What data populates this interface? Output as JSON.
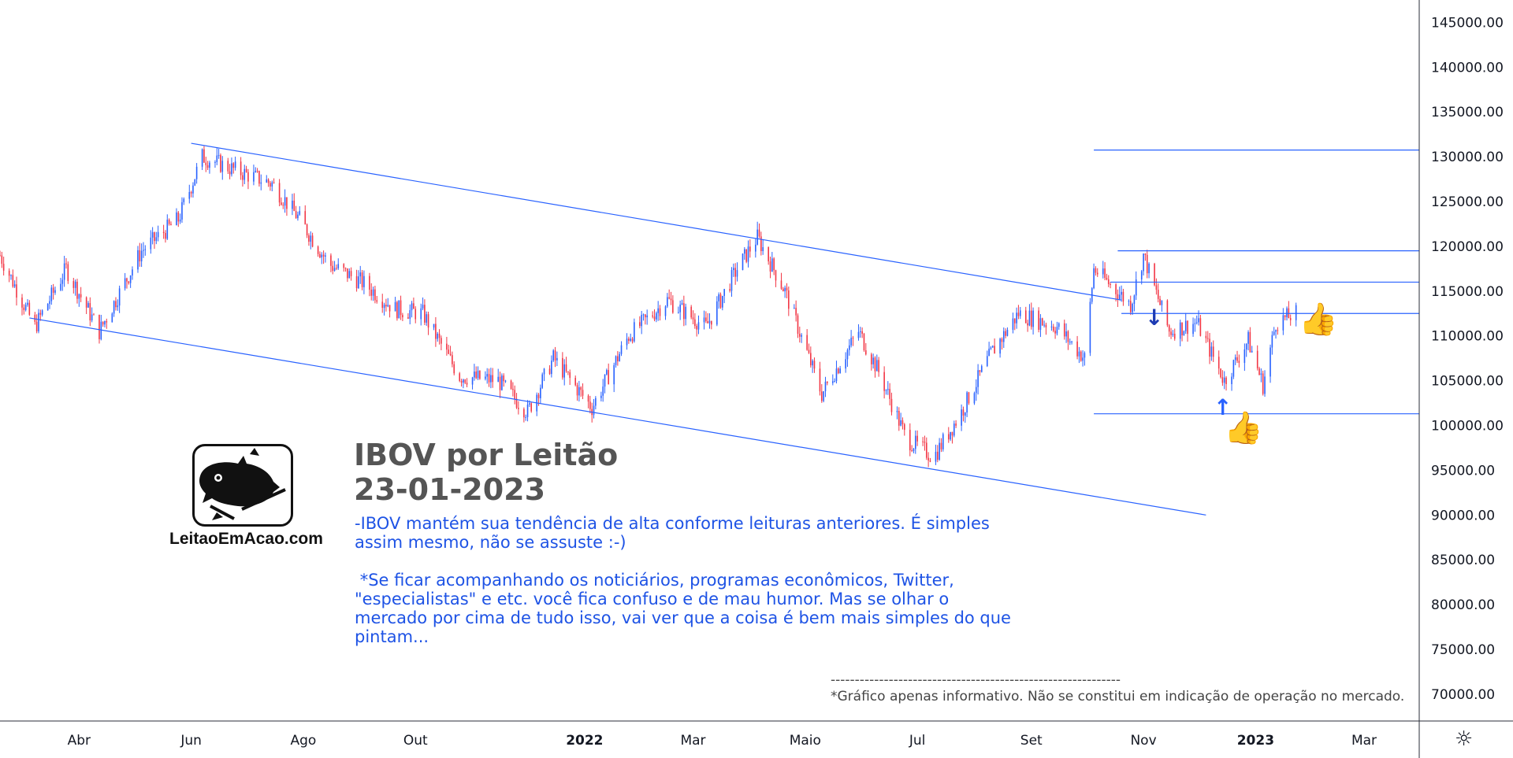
{
  "chart_data": {
    "type": "candlestick",
    "title": "IBOV por Leitão",
    "subtitle": "23-01-2023",
    "y_ticks": [
      145000,
      140000,
      135000,
      130000,
      125000,
      120000,
      115000,
      110000,
      105000,
      100000,
      95000,
      90000,
      85000,
      80000,
      75000,
      70000
    ],
    "y_tick_labels": [
      "145000.00",
      "140000.00",
      "135000.00",
      "130000.00",
      "125000.00",
      "120000.00",
      "115000.00",
      "110000.00",
      "105000.00",
      "100000.00",
      "95000.00",
      "90000.00",
      "85000.00",
      "80000.00",
      "75000.00",
      "70000.00"
    ],
    "ylim": [
      67000,
      147500
    ],
    "x_range": [
      "2021-02-17",
      "2023-03-31"
    ],
    "x_ticks": [
      {
        "label": "Abr",
        "date": "2021-04-01",
        "bold": false
      },
      {
        "label": "Jun",
        "date": "2021-06-01",
        "bold": false
      },
      {
        "label": "Ago",
        "date": "2021-08-01",
        "bold": false
      },
      {
        "label": "Out",
        "date": "2021-10-01",
        "bold": false
      },
      {
        "label": "2022",
        "date": "2022-01-01",
        "bold": true
      },
      {
        "label": "Mar",
        "date": "2022-03-01",
        "bold": false
      },
      {
        "label": "Maio",
        "date": "2022-05-01",
        "bold": false
      },
      {
        "label": "Jul",
        "date": "2022-07-01",
        "bold": false
      },
      {
        "label": "Set",
        "date": "2022-09-01",
        "bold": false
      },
      {
        "label": "Nov",
        "date": "2022-11-01",
        "bold": false
      },
      {
        "label": "2023",
        "date": "2023-01-01",
        "bold": true
      },
      {
        "label": "Mar",
        "date": "2023-03-01",
        "bold": false
      }
    ],
    "colors": {
      "up": "#2962ff",
      "down": "#f23645",
      "line": "#2962ff",
      "axis_text": "#131722",
      "axis_line": "#2a2e39"
    },
    "price_path": [
      [
        "2021-02-17",
        119000
      ],
      [
        "2021-03-08",
        111000
      ],
      [
        "2021-03-25",
        117500
      ],
      [
        "2021-04-12",
        110500
      ],
      [
        "2021-05-05",
        119500
      ],
      [
        "2021-05-25",
        123000
      ],
      [
        "2021-06-07",
        130000
      ],
      [
        "2021-06-25",
        128500
      ],
      [
        "2021-07-15",
        127000
      ],
      [
        "2021-07-30",
        123000
      ],
      [
        "2021-08-15",
        118000
      ],
      [
        "2021-09-02",
        116000
      ],
      [
        "2021-09-20",
        113000
      ],
      [
        "2021-10-05",
        112500
      ],
      [
        "2021-10-25",
        105500
      ],
      [
        "2021-11-15",
        105000
      ],
      [
        "2021-12-01",
        101500
      ],
      [
        "2021-12-15",
        107500
      ],
      [
        "2022-01-05",
        102000
      ],
      [
        "2022-01-25",
        110000
      ],
      [
        "2022-02-15",
        114000
      ],
      [
        "2022-03-08",
        111000
      ],
      [
        "2022-03-25",
        117500
      ],
      [
        "2022-04-05",
        121000
      ],
      [
        "2022-04-20",
        115000
      ],
      [
        "2022-05-10",
        103500
      ],
      [
        "2022-05-30",
        110500
      ],
      [
        "2022-06-10",
        106000
      ],
      [
        "2022-06-25",
        98500
      ],
      [
        "2022-07-10",
        96500
      ],
      [
        "2022-07-25",
        101500
      ],
      [
        "2022-08-10",
        108000
      ],
      [
        "2022-08-25",
        112500
      ],
      [
        "2022-09-15",
        111000
      ],
      [
        "2022-09-30",
        107500
      ],
      [
        "2022-10-05",
        117500
      ],
      [
        "2022-10-25",
        113500
      ],
      [
        "2022-11-01",
        119000
      ],
      [
        "2022-11-15",
        110500
      ],
      [
        "2022-11-30",
        111500
      ],
      [
        "2022-12-15",
        105000
      ],
      [
        "2022-12-28",
        109500
      ],
      [
        "2023-01-05",
        104500
      ],
      [
        "2023-01-12",
        111500
      ],
      [
        "2023-01-23",
        112500
      ]
    ],
    "price_noise": 1300,
    "trendlines": [
      {
        "from": [
          "2021-06-01",
          131500
        ],
        "to": [
          "2022-10-20",
          114000
        ]
      },
      {
        "from": [
          "2021-03-05",
          112000
        ],
        "to": [
          "2022-12-05",
          90000
        ]
      }
    ],
    "horizontal_lines": [
      {
        "from": "2022-10-05",
        "to": "2023-03-31",
        "value": 130750
      },
      {
        "from": "2022-10-18",
        "to": "2023-03-31",
        "value": 119500
      },
      {
        "from": "2022-10-14",
        "to": "2023-03-31",
        "value": 116000
      },
      {
        "from": "2022-10-20",
        "to": "2023-03-31",
        "value": 112500
      },
      {
        "from": "2022-10-05",
        "to": "2023-03-31",
        "value": 101300
      }
    ],
    "grid": false,
    "legend": "none"
  },
  "branding": {
    "site": "LeitaoEmAcao.com",
    "logo_icon": "pig-logo-icon"
  },
  "annotation": {
    "paragraph_1": "-IBOV mantém sua tendência de alta conforme leituras anteriores. É simples assim mesmo, não se assuste :-)",
    "paragraph_2": " *Se ficar acompanhando os noticiários, programas econômicos, Twitter, \"especialistas\" e etc. você fica confuso e de mau humor. Mas se olhar o mercado por cima de tudo isso, vai ver que a coisa é bem mais simples do que pintam..."
  },
  "disclaimer": {
    "separator": "------------------------------------------------------------",
    "text": "*Gráfico apenas informativo. Não se constitui em indicação de operação no mercado."
  },
  "markers": {
    "arrow_down": "↓",
    "arrow_up": "↑",
    "thumb_1": "👍",
    "thumb_2": "👍",
    "thumb_color": "#34c318"
  },
  "toolbar": {
    "settings_icon": "☼",
    "settings_icon_name": "settings-gear-icon"
  }
}
